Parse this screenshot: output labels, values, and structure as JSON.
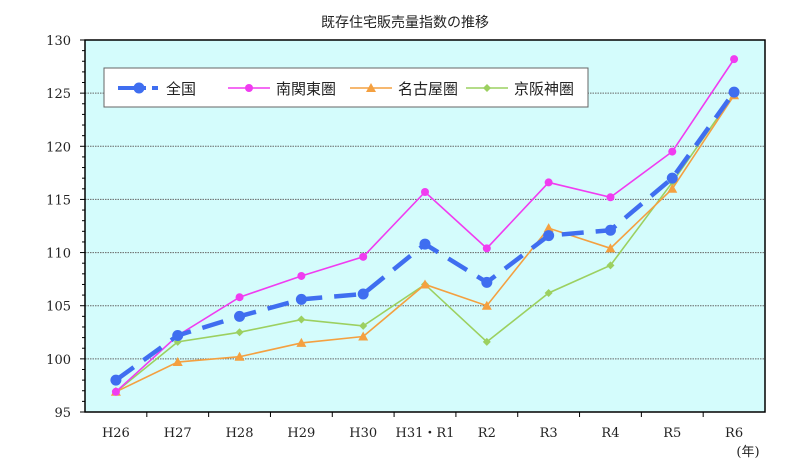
{
  "chart_data": {
    "type": "line",
    "title": "既存住宅販売量指数の推移",
    "xlabel": "(年)",
    "ylabel": "",
    "categories": [
      "H26",
      "H27",
      "H28",
      "H29",
      "H30",
      "H31・R1",
      "R2",
      "R3",
      "R4",
      "R5",
      "R6"
    ],
    "ylim": [
      95,
      130
    ],
    "yticks": [
      95,
      100,
      105,
      110,
      115,
      120,
      125,
      130
    ],
    "grid": true,
    "legend_placement": "top-left",
    "plot_background": "#d4fcfc",
    "series": [
      {
        "name": "全国",
        "color": "#3f6ef0",
        "marker": "circle",
        "dashed": true,
        "values": [
          98.0,
          102.2,
          104.0,
          105.6,
          106.1,
          110.8,
          107.2,
          111.6,
          112.1,
          117.0,
          125.1
        ]
      },
      {
        "name": "南関東圏",
        "color": "#f03cf0",
        "marker": "circle",
        "dashed": false,
        "values": [
          96.9,
          102.2,
          105.8,
          107.8,
          109.6,
          115.7,
          110.4,
          116.6,
          115.2,
          119.5,
          128.2
        ]
      },
      {
        "name": "名古屋圏",
        "color": "#f4a040",
        "marker": "triangle",
        "dashed": false,
        "values": [
          96.9,
          99.7,
          100.2,
          101.5,
          102.1,
          107.0,
          105.0,
          112.3,
          110.4,
          116.0,
          124.8
        ]
      },
      {
        "name": "京阪神圏",
        "color": "#9cd060",
        "marker": "diamond",
        "dashed": false,
        "values": [
          96.9,
          101.6,
          102.5,
          103.7,
          103.1,
          107.0,
          101.6,
          106.2,
          108.8,
          116.6,
          124.9
        ]
      }
    ]
  }
}
